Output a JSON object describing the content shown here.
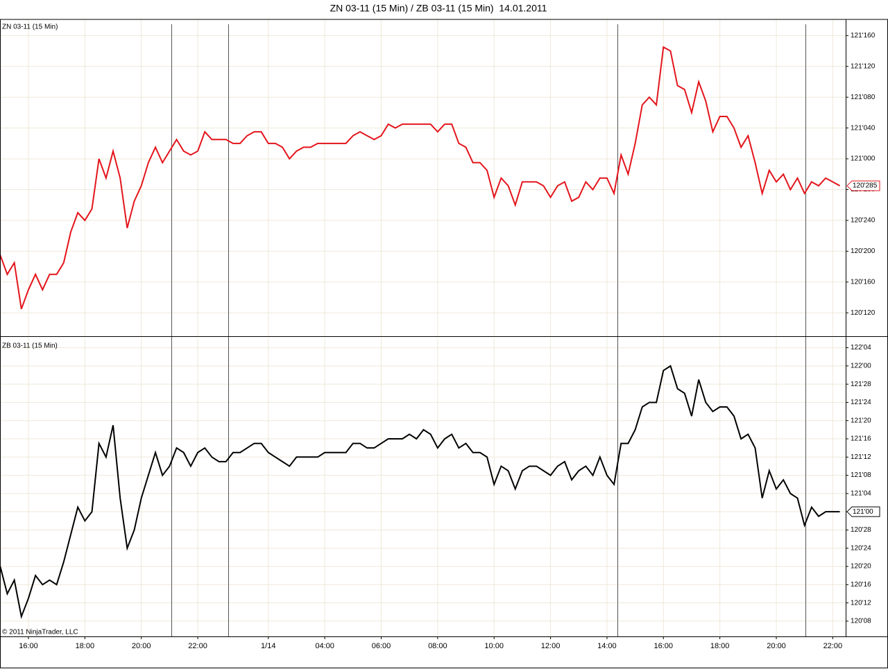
{
  "title": "ZN 03-11 (15 Min) / ZB 03-11 (15 Min)  14.01.2011",
  "copyright": "© 2011 NinjaTrader, LLC",
  "chart_data": [
    {
      "type": "line",
      "grid": true,
      "last_label": "120'285",
      "ylim": [
        120.28,
        121.56
      ],
      "yticks": [
        {
          "value": 121.5,
          "label": "121'160"
        },
        {
          "value": 121.375,
          "label": "121'120"
        },
        {
          "value": 121.25,
          "label": "121'080"
        },
        {
          "value": 121.125,
          "label": "121'040"
        },
        {
          "value": 121,
          "label": "121'000"
        },
        {
          "value": 120.875,
          "label": "120'280"
        },
        {
          "value": 120.75,
          "label": "120'240"
        },
        {
          "value": 120.625,
          "label": "120'200"
        },
        {
          "value": 120.5,
          "label": "120'160"
        },
        {
          "value": 120.375,
          "label": "120'120"
        }
      ],
      "series": [
        {
          "name": "ZN 03-11 (15 Min)",
          "color": "#e3141b",
          "values": [
            120.609375,
            120.53125,
            120.578125,
            120.390625,
            120.46875,
            120.53125,
            120.46875,
            120.53125,
            120.53125,
            120.578125,
            120.703125,
            120.78125,
            120.75,
            120.796875,
            121,
            120.921875,
            121.03125,
            120.921875,
            120.71875,
            120.828125,
            120.890625,
            120.984375,
            121.046875,
            120.984375,
            121.03125,
            121.078125,
            121.03125,
            121.015625,
            121.03125,
            121.109375,
            121.078125,
            121.078125,
            121.078125,
            121.0625,
            121.0625,
            121.09375,
            121.109375,
            121.109375,
            121.0625,
            121.0625,
            121.046875,
            121,
            121.03125,
            121.046875,
            121.046875,
            121.0625,
            121.0625,
            121.0625,
            121.0625,
            121.0625,
            121.09375,
            121.109375,
            121.09375,
            121.078125,
            121.09375,
            121.140625,
            121.125,
            121.140625,
            121.140625,
            121.140625,
            121.140625,
            121.140625,
            121.109375,
            121.140625,
            121.140625,
            121.0625,
            121.046875,
            120.984375,
            120.984375,
            120.953125,
            120.84375,
            120.921875,
            120.890625,
            120.8125,
            120.90625,
            120.90625,
            120.90625,
            120.890625,
            120.84375,
            120.890625,
            120.90625,
            120.828125,
            120.84375,
            120.90625,
            120.875,
            120.921875,
            120.921875,
            120.859375,
            121.015625,
            120.9375,
            121.0625,
            121.21875,
            121.25,
            121.21875,
            121.453125,
            121.4375,
            121.296875,
            121.28125,
            121.1875,
            121.3125,
            121.234375,
            121.109375,
            121.171875,
            121.171875,
            121.125,
            121.046875,
            121.09375,
            120.984375,
            120.859375,
            120.953125,
            120.90625,
            120.9375,
            120.875,
            120.921875,
            120.859375,
            120.90625,
            120.890625,
            120.921875,
            120.90625,
            120.890625
          ]
        }
      ]
    },
    {
      "type": "line",
      "grid": true,
      "last_label": "121'00",
      "ylim": [
        120.145,
        122.18
      ],
      "yticks": [
        {
          "value": 122.125,
          "label": "122'04"
        },
        {
          "value": 122,
          "label": "122'00"
        },
        {
          "value": 121.875,
          "label": "121'28"
        },
        {
          "value": 121.75,
          "label": "121'24"
        },
        {
          "value": 121.625,
          "label": "121'20"
        },
        {
          "value": 121.5,
          "label": "121'16"
        },
        {
          "value": 121.375,
          "label": "121'12"
        },
        {
          "value": 121.25,
          "label": "121'08"
        },
        {
          "value": 121.125,
          "label": "121'04"
        },
        {
          "value": 121,
          "label": "121'00"
        },
        {
          "value": 120.875,
          "label": "120'28"
        },
        {
          "value": 120.75,
          "label": "120'24"
        },
        {
          "value": 120.625,
          "label": "120'20"
        },
        {
          "value": 120.5,
          "label": "120'16"
        },
        {
          "value": 120.375,
          "label": "120'12"
        },
        {
          "value": 120.25,
          "label": "120'08"
        }
      ],
      "categories": [
        null,
        null,
        null,
        null,
        "16:00",
        null,
        null,
        null,
        null,
        null,
        null,
        null,
        "18:00",
        null,
        null,
        null,
        null,
        null,
        null,
        null,
        "20:00",
        null,
        null,
        null,
        null,
        null,
        null,
        null,
        "22:00",
        null,
        null,
        null,
        null,
        null,
        null,
        null,
        null,
        null,
        "1/14",
        null,
        null,
        null,
        null,
        null,
        null,
        null,
        "04:00",
        null,
        null,
        null,
        null,
        null,
        null,
        null,
        "06:00",
        null,
        null,
        null,
        null,
        null,
        null,
        null,
        "08:00",
        null,
        null,
        null,
        null,
        null,
        null,
        null,
        "10:00",
        null,
        null,
        null,
        null,
        null,
        null,
        null,
        "12:00",
        null,
        null,
        null,
        null,
        null,
        null,
        null,
        "14:00",
        null,
        null,
        null,
        null,
        null,
        null,
        null,
        "16:00",
        null,
        null,
        null,
        null,
        null,
        null,
        null,
        "18:00",
        null,
        null,
        null,
        null,
        null,
        null,
        null,
        "20:00",
        null,
        null,
        null,
        null,
        null,
        null,
        null,
        "22:00",
        null
      ],
      "series": [
        {
          "name": "ZB 03-11 (15 Min)",
          "color": "#000000",
          "values": [
            120.625,
            120.4375,
            120.53125,
            120.28125,
            120.40625,
            120.5625,
            120.5,
            120.53125,
            120.5,
            120.65625,
            120.84375,
            121.03125,
            120.9375,
            121,
            121.46875,
            121.375,
            121.59375,
            121.09375,
            120.75,
            120.875,
            121.09375,
            121.25,
            121.40625,
            121.25,
            121.3125,
            121.4375,
            121.40625,
            121.3125,
            121.40625,
            121.4375,
            121.375,
            121.34375,
            121.34375,
            121.40625,
            121.40625,
            121.4375,
            121.46875,
            121.46875,
            121.40625,
            121.375,
            121.34375,
            121.3125,
            121.375,
            121.375,
            121.375,
            121.375,
            121.40625,
            121.40625,
            121.40625,
            121.40625,
            121.46875,
            121.46875,
            121.4375,
            121.4375,
            121.46875,
            121.5,
            121.5,
            121.5,
            121.53125,
            121.5,
            121.5625,
            121.53125,
            121.4375,
            121.5,
            121.53125,
            121.4375,
            121.46875,
            121.40625,
            121.40625,
            121.375,
            121.1875,
            121.3125,
            121.28125,
            121.15625,
            121.28125,
            121.3125,
            121.3125,
            121.28125,
            121.25,
            121.3125,
            121.34375,
            121.21875,
            121.28125,
            121.3125,
            121.25,
            121.375,
            121.25,
            121.1875,
            121.46875,
            121.46875,
            121.5625,
            121.71875,
            121.75,
            121.75,
            121.96875,
            122,
            121.84375,
            121.8125,
            121.65625,
            121.90625,
            121.75,
            121.6875,
            121.71875,
            121.71875,
            121.65625,
            121.5,
            121.53125,
            121.4375,
            121.09375,
            121.28125,
            121.15625,
            121.21875,
            121.125,
            121.09375,
            120.90625,
            121.03125,
            120.96875,
            121,
            121,
            121
          ]
        }
      ]
    }
  ]
}
